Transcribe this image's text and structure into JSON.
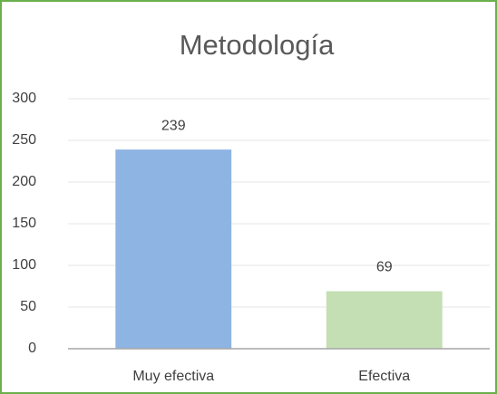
{
  "chart_data": {
    "type": "bar",
    "title": "Metodología",
    "categories": [
      "Muy efectiva",
      "Efectiva"
    ],
    "values": [
      239,
      69
    ],
    "colors": [
      "#8eb4e3",
      "#c4dfb3"
    ],
    "ylim": [
      0,
      300
    ],
    "yticks": [
      0,
      50,
      100,
      150,
      200,
      250,
      300
    ],
    "grid": true,
    "data_labels": true
  }
}
